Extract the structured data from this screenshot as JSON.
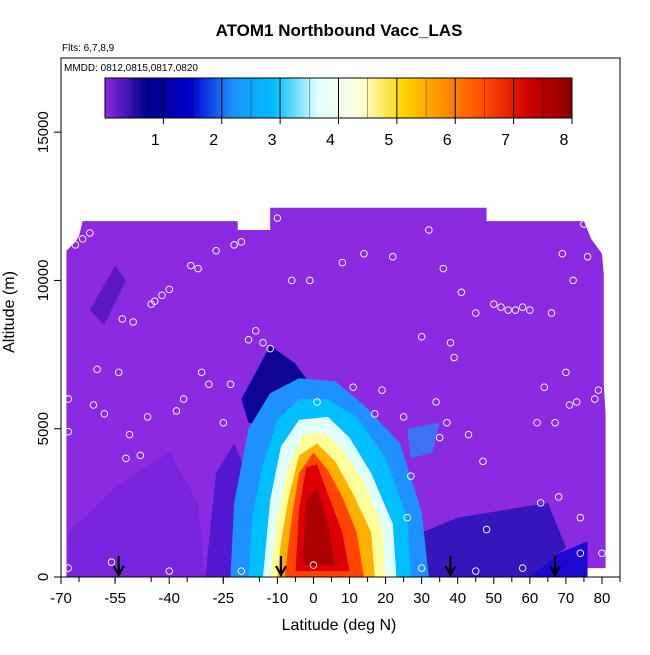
{
  "chart_data": {
    "type": "heatmap",
    "title": "ATOM1 Northbound Vacc_LAS",
    "flights_label": "Flts: 6,7,8,9",
    "mmdd_label": "MMDD: 0812,0815,0817,0820",
    "xlabel": "Latitude (deg N)",
    "ylabel": "Altitude (m)",
    "xlim": [
      -70,
      85
    ],
    "ylim": [
      0,
      17500
    ],
    "x_ticks": [
      -70,
      -55,
      -40,
      -25,
      -10,
      0,
      10,
      20,
      30,
      40,
      50,
      60,
      70,
      80
    ],
    "x_tick_labels": [
      "-70",
      "-55",
      "-40",
      "-25",
      "-10",
      "0",
      "10",
      "20",
      "30",
      "40",
      "50",
      "60",
      "70",
      "80"
    ],
    "y_ticks": [
      0,
      5000,
      10000,
      15000
    ],
    "y_tick_labels": [
      "0",
      "5000",
      "10000",
      "15000"
    ],
    "colorbar": {
      "range": [
        0,
        8
      ],
      "ticks": [
        1,
        2,
        3,
        4,
        5,
        6,
        7,
        8
      ],
      "tick_labels": [
        "1",
        "2",
        "3",
        "4",
        "5",
        "6",
        "7",
        "8"
      ],
      "colors": [
        "#8a2be2",
        "#00008b",
        "#0000cd",
        "#1e90ff",
        "#00bfff",
        "#e0ffff",
        "#ffffe0",
        "#ffd700",
        "#ff8c00",
        "#ff4500",
        "#cc0000",
        "#8b0000"
      ]
    },
    "arrow_latitudes": [
      -54,
      -9,
      38,
      67
    ],
    "sample_points": [
      [
        -68,
        6000
      ],
      [
        -68,
        4900
      ],
      [
        -68,
        300
      ],
      [
        -66,
        11200
      ],
      [
        -64,
        11400
      ],
      [
        -62,
        11600
      ],
      [
        -60,
        7000
      ],
      [
        -61,
        5800
      ],
      [
        -58,
        5500
      ],
      [
        -56,
        500
      ],
      [
        -53,
        8700
      ],
      [
        -54,
        6900
      ],
      [
        -52,
        4000
      ],
      [
        -51,
        4800
      ],
      [
        -50,
        8600
      ],
      [
        -48,
        4100
      ],
      [
        -46,
        5400
      ],
      [
        -45,
        9200
      ],
      [
        -44,
        9300
      ],
      [
        -42,
        9500
      ],
      [
        -40,
        9700
      ],
      [
        -38,
        5600
      ],
      [
        -36,
        6000
      ],
      [
        -34,
        10500
      ],
      [
        -32,
        10400
      ],
      [
        -31,
        6900
      ],
      [
        -29,
        6500
      ],
      [
        -27,
        11000
      ],
      [
        -25,
        5200
      ],
      [
        -23,
        6500
      ],
      [
        -22,
        11200
      ],
      [
        -20,
        11300
      ],
      [
        -18,
        8000
      ],
      [
        -16,
        8300
      ],
      [
        -14,
        7900
      ],
      [
        -12,
        7700
      ],
      [
        -10,
        12100
      ],
      [
        -6,
        10000
      ],
      [
        -1,
        10000
      ],
      [
        1,
        5900
      ],
      [
        3,
        4900
      ],
      [
        8,
        10600
      ],
      [
        11,
        6400
      ],
      [
        14,
        10900
      ],
      [
        17,
        5500
      ],
      [
        19,
        6300
      ],
      [
        22,
        10800
      ],
      [
        25,
        5400
      ],
      [
        26,
        2000
      ],
      [
        27,
        3400
      ],
      [
        30,
        8100
      ],
      [
        32,
        11700
      ],
      [
        34,
        5900
      ],
      [
        35,
        4700
      ],
      [
        36,
        10400
      ],
      [
        37,
        5200
      ],
      [
        38,
        7900
      ],
      [
        39,
        7400
      ],
      [
        41,
        9600
      ],
      [
        43,
        4800
      ],
      [
        45,
        8900
      ],
      [
        47,
        3900
      ],
      [
        48,
        1600
      ],
      [
        50,
        9200
      ],
      [
        52,
        9100
      ],
      [
        54,
        9000
      ],
      [
        56,
        9000
      ],
      [
        58,
        9100
      ],
      [
        60,
        9000
      ],
      [
        62,
        5200
      ],
      [
        63,
        2500
      ],
      [
        64,
        6400
      ],
      [
        66,
        8900
      ],
      [
        67,
        5200
      ],
      [
        68,
        2700
      ],
      [
        69,
        10900
      ],
      [
        70,
        6900
      ],
      [
        71,
        5800
      ],
      [
        72,
        10000
      ],
      [
        73,
        5900
      ],
      [
        74,
        2000
      ],
      [
        74,
        800
      ],
      [
        75,
        11900
      ],
      [
        76,
        10800
      ],
      [
        78,
        6000
      ],
      [
        79,
        6300
      ],
      [
        80,
        800
      ],
      [
        30,
        300
      ],
      [
        -40,
        200
      ],
      [
        -20,
        200
      ],
      [
        0,
        400
      ],
      [
        20,
        300
      ],
      [
        45,
        200
      ],
      [
        58,
        300
      ]
    ]
  }
}
